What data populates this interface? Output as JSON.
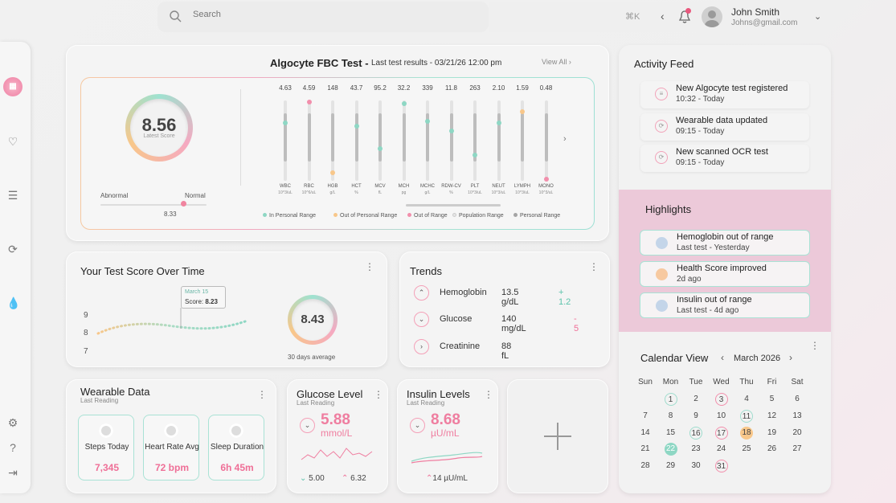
{
  "header": {
    "search_placeholder": "Search",
    "search_shortcut": "⌘K",
    "user_name": "John Smith",
    "user_email": "Johns@gmail.com"
  },
  "sidebar": {
    "logo_icon": "logo-icon",
    "top_items": [
      "heart-icon",
      "list-icon",
      "sync-icon",
      "drop-icon"
    ],
    "bottom_items": [
      "settings-icon",
      "help-icon",
      "logout-icon"
    ]
  },
  "fbc": {
    "title": "Algocyte FBC Test -",
    "subtitle": "Last test results - 03/21/26  12:00 pm",
    "view_all": "View All",
    "score": "8.56",
    "score_label": "Latest Score",
    "range_left": "Abnormal",
    "range_right": "Normal",
    "range_value": "8.33",
    "range_fraction": 0.78,
    "markers": [
      {
        "value": "4.63",
        "name": "WBC",
        "unit": "10^3/uL",
        "marker": "teal",
        "level": 0.72
      },
      {
        "value": "4.59",
        "name": "RBC",
        "unit": "10^6/uL",
        "marker": "pink",
        "level": 0.98
      },
      {
        "value": "148",
        "name": "HGB",
        "unit": "g/L",
        "marker": "yellow",
        "level": 0.1
      },
      {
        "value": "43.7",
        "name": "HCT",
        "unit": "%",
        "marker": "teal",
        "level": 0.68
      },
      {
        "value": "95.2",
        "name": "MCV",
        "unit": "fL",
        "marker": "teal",
        "level": 0.4
      },
      {
        "value": "32.2",
        "name": "MCH",
        "unit": "pg",
        "marker": "teal",
        "level": 0.96
      },
      {
        "value": "339",
        "name": "MCHC",
        "unit": "g/L",
        "marker": "teal",
        "level": 0.74
      },
      {
        "value": "11.8",
        "name": "RDW-CV",
        "unit": "%",
        "marker": "teal",
        "level": 0.62
      },
      {
        "value": "263",
        "name": "PLT",
        "unit": "10^3/uL",
        "marker": "teal",
        "level": 0.32
      },
      {
        "value": "2.10",
        "name": "NEUT",
        "unit": "10^3/uL",
        "marker": "teal",
        "level": 0.72
      },
      {
        "value": "1.59",
        "name": "LYMPH",
        "unit": "10^3/uL",
        "marker": "yellow",
        "level": 0.86
      },
      {
        "value": "0.48",
        "name": "MONO",
        "unit": "10^3/uL",
        "marker": "pink",
        "level": 0.02
      }
    ],
    "legend": [
      {
        "label": "In Personal Range",
        "color": "#8ed7c4"
      },
      {
        "label": "Out of Personal Range",
        "color": "#f8c78a"
      },
      {
        "label": "Out of Range",
        "color": "#f28fac"
      },
      {
        "label": "Population Range",
        "color": "#e6e6e6"
      },
      {
        "label": "Personal Range",
        "color": "#a5a5a5"
      }
    ]
  },
  "score_time": {
    "title": "Your Test Score Over Time",
    "y_ticks": [
      "9",
      "8",
      "7"
    ],
    "tooltip_date": "March 15",
    "tooltip_score_label": "Score:",
    "tooltip_score": "8.23",
    "avg_value": "8.43",
    "avg_label": "30 days average"
  },
  "trends": {
    "title": "Trends",
    "items": [
      {
        "name": "Hemoglobin",
        "value": "13.5 g/dL",
        "delta": "+ 1.2",
        "direction": "up",
        "delta_color": "#5bc3ab"
      },
      {
        "name": "Glucose",
        "value": "140 mg/dL",
        "delta": "- 5",
        "direction": "down",
        "delta_color": "#ef6f97"
      },
      {
        "name": "Creatinine",
        "value": "88 fL",
        "delta": "",
        "direction": "right",
        "delta_color": "#444"
      }
    ]
  },
  "wearable": {
    "title": "Wearable Data",
    "subtitle": "Last Reading",
    "tiles": [
      {
        "label": "Steps Today",
        "value": "7,345",
        "icon": "steps-icon"
      },
      {
        "label": "Heart Rate Avg",
        "value": "72 bpm",
        "icon": "heart-rate-icon"
      },
      {
        "label": "Sleep Duration",
        "value": "6h 45m",
        "icon": "sleep-icon"
      }
    ]
  },
  "glucose": {
    "title": "Glucose Level",
    "subtitle": "Last Reading",
    "value": "5.88",
    "unit": "mmol/L",
    "low": "5.00",
    "high": "6.32"
  },
  "insulin": {
    "title": "Insulin Levels",
    "subtitle": "Last Reading",
    "value": "8.68",
    "unit": "µU/mL",
    "bottom": "14 µU/mL"
  },
  "activity": {
    "title": "Activity Feed",
    "items": [
      {
        "title": "New Algocyte test registered",
        "time": "10:32 - Today",
        "icon": "list-icon"
      },
      {
        "title": "Wearable data updated",
        "time": "09:15 - Today",
        "icon": "sync-icon"
      },
      {
        "title": "New scanned OCR test",
        "time": "09:15 - Today",
        "icon": "sync-icon"
      }
    ]
  },
  "highlights": {
    "title": "Highlights",
    "items": [
      {
        "title": "Hemoglobin out of range",
        "sub": "Last test - Yesterday",
        "icon": "alert-icon",
        "color": "#c4d5e9"
      },
      {
        "title": "Health Score improved",
        "sub": "2d ago",
        "icon": "score-up-icon",
        "color": "#f7c9a0"
      },
      {
        "title": "Insulin out of range",
        "sub": "Last test - 4d ago",
        "icon": "alert-icon",
        "color": "#c4d5e9"
      }
    ]
  },
  "calendar": {
    "title": "Calendar View",
    "month": "March 2026",
    "weekdays": [
      "Sun",
      "Mon",
      "Tue",
      "Wed",
      "Thu",
      "Fri",
      "Sat"
    ],
    "weeks": [
      [
        "",
        "1",
        "2",
        "3",
        "4",
        "5",
        "6"
      ],
      [
        "7",
        "8",
        "9",
        "10",
        "11",
        "12",
        "13"
      ],
      [
        "14",
        "15",
        "16",
        "17",
        "18",
        "19",
        "20"
      ],
      [
        "21",
        "22",
        "23",
        "24",
        "25",
        "26",
        "27"
      ],
      [
        "28",
        "29",
        "30",
        "31",
        "",
        "",
        ""
      ]
    ],
    "marked": {
      "1": "circ",
      "3": "circp",
      "11": "circ",
      "16": "circ",
      "17": "circp",
      "18": "fill-or",
      "22": "fill-tl",
      "31": "circp"
    }
  }
}
